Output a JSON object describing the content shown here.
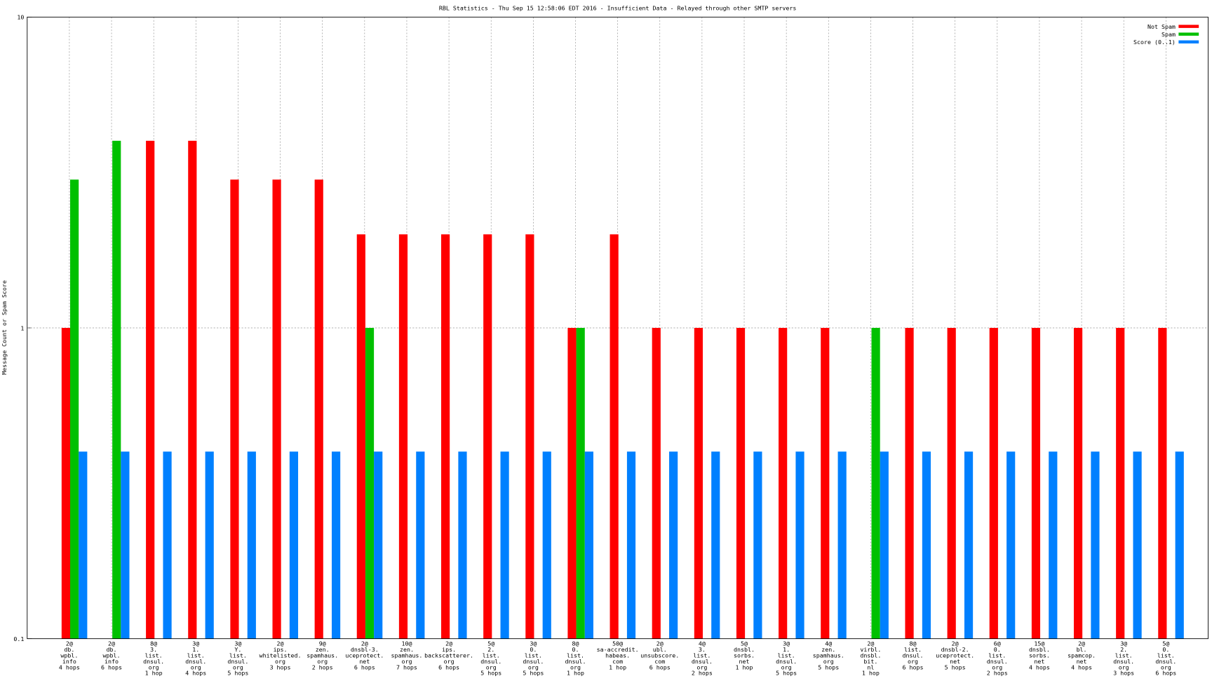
{
  "chart_data": {
    "type": "bar",
    "title": "RBL Statistics - Thu Sep 15 12:58:06 EDT 2016 - Insufficient Data - Relayed through other SMTP servers",
    "y_label": "Message Count or Spam Score",
    "log_scale": true,
    "grid": true,
    "legend": "upper right",
    "ylim": [
      0.1,
      10
    ],
    "yticks": [
      0.1,
      1,
      10
    ],
    "categories": [
      [
        "2@",
        "db.",
        "wpbl.",
        "info",
        "4 hops"
      ],
      [
        "2@",
        "db.",
        "wpbl.",
        "info",
        "6 hops"
      ],
      [
        "8@",
        "3.",
        "list.",
        "dnsul.",
        "org",
        "1 hop"
      ],
      [
        "3@",
        "1.",
        "list.",
        "dnsul.",
        "org",
        "4 hops"
      ],
      [
        "3@",
        "Y.",
        "list.",
        "dnsul.",
        "org",
        "5 hops"
      ],
      [
        "2@",
        "ips.",
        "whitelisted.",
        "org",
        "3 hops"
      ],
      [
        "9@",
        "zen.",
        "spamhaus.",
        "org",
        "2 hops"
      ],
      [
        "2@",
        "dnsbl-3.",
        "uceprotect.",
        "net",
        "6 hops"
      ],
      [
        "10@",
        "zen.",
        "spamhaus.",
        "org",
        "7 hops"
      ],
      [
        "2@",
        "ips.",
        "backscatterer.",
        "org",
        "6 hops"
      ],
      [
        "5@",
        "2.",
        "list.",
        "dnsul.",
        "org",
        "5 hops"
      ],
      [
        "3@",
        "0.",
        "list.",
        "dnsul.",
        "org",
        "5 hops"
      ],
      [
        "8@",
        "0.",
        "list.",
        "dnsul.",
        "org",
        "1 hop"
      ],
      [
        "50@",
        "sa-accredit.",
        "habeas.",
        "com",
        "1 hop"
      ],
      [
        "2@",
        "ubl.",
        "unsubscore.",
        "com",
        "6 hops"
      ],
      [
        "4@",
        "3.",
        "list.",
        "dnsul.",
        "org",
        "2 hops"
      ],
      [
        "5@",
        "dnsbl.",
        "sorbs.",
        "net",
        "1 hop"
      ],
      [
        "3@",
        "1.",
        "list.",
        "dnsul.",
        "org",
        "5 hops"
      ],
      [
        "4@",
        "zen.",
        "spamhaus.",
        "org",
        "5 hops"
      ],
      [
        "2@",
        "virbl.",
        "dnsbl.",
        "bit.",
        "nl",
        "1 hop"
      ],
      [
        "8@",
        "list.",
        "dnsul.",
        "org",
        "6 hops"
      ],
      [
        "2@",
        "dnsbl-2.",
        "uceprotect.",
        "net",
        "5 hops"
      ],
      [
        "6@",
        "0.",
        "list.",
        "dnsul.",
        "org",
        "2 hops"
      ],
      [
        "15@",
        "dnsbl.",
        "sorbs.",
        "net",
        "4 hops"
      ],
      [
        "2@",
        "bl.",
        "spamcop.",
        "net",
        "4 hops"
      ],
      [
        "3@",
        "2.",
        "list.",
        "dnsul.",
        "org",
        "3 hops"
      ],
      [
        "5@",
        "0.",
        "list.",
        "dnsul.",
        "org",
        "6 hops"
      ]
    ],
    "series": [
      {
        "name": "Not Spam",
        "color": "#ff0000",
        "values": [
          1,
          null,
          4,
          4,
          3,
          3,
          3,
          2,
          2,
          2,
          2,
          2,
          1,
          2,
          1,
          1,
          1,
          1,
          1,
          null,
          1,
          1,
          1,
          1,
          1,
          1,
          1
        ]
      },
      {
        "name": "Spam",
        "color": "#00c000",
        "values": [
          3,
          4,
          null,
          null,
          null,
          null,
          null,
          1,
          null,
          null,
          null,
          null,
          1,
          null,
          null,
          null,
          null,
          null,
          null,
          1,
          null,
          null,
          null,
          null,
          null,
          null,
          null
        ]
      },
      {
        "name": "Score (0..1)",
        "color": "#0080ff",
        "values": [
          0.4,
          0.4,
          0.4,
          0.4,
          0.4,
          0.4,
          0.4,
          0.4,
          0.4,
          0.4,
          0.4,
          0.4,
          0.4,
          0.4,
          0.4,
          0.4,
          0.4,
          0.4,
          0.4,
          0.4,
          0.4,
          0.4,
          0.4,
          0.4,
          0.4,
          0.4,
          0.4
        ]
      }
    ]
  }
}
